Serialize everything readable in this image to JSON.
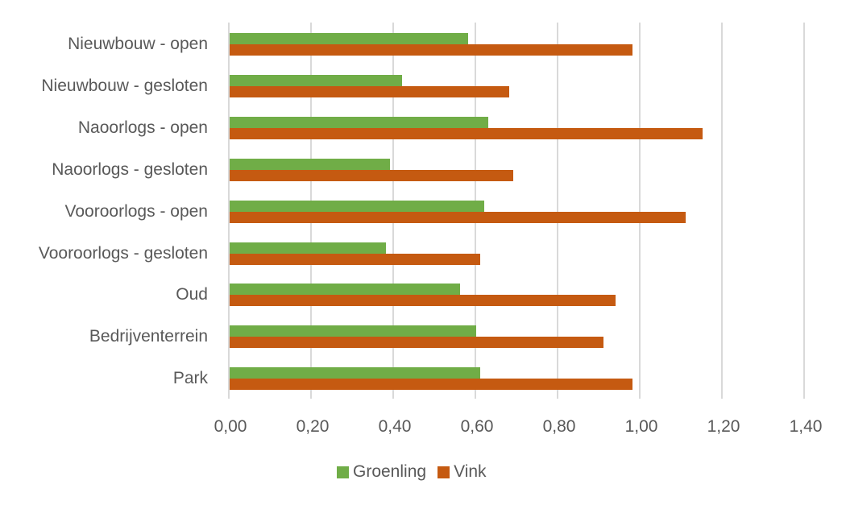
{
  "chart_data": {
    "type": "bar",
    "orientation": "horizontal",
    "title": "",
    "xlabel": "",
    "ylabel": "",
    "categories": [
      "Nieuwbouw - open",
      "Nieuwbouw - gesloten",
      "Naoorlogs - open",
      "Naoorlogs - gesloten",
      "Vooroorlogs - open",
      "Vooroorlogs - gesloten",
      "Oud",
      "Bedrijventerrein",
      "Park"
    ],
    "series": [
      {
        "name": "Groenling",
        "color": "#70ad47",
        "values": [
          0.58,
          0.42,
          0.63,
          0.39,
          0.62,
          0.38,
          0.56,
          0.6,
          0.61
        ]
      },
      {
        "name": "Vink",
        "color": "#c55a11",
        "values": [
          0.98,
          0.68,
          1.15,
          0.69,
          1.11,
          0.61,
          0.94,
          0.91,
          0.98
        ]
      }
    ],
    "xlim": [
      0,
      1.4
    ],
    "x_ticks": [
      "0,00",
      "0,20",
      "0,40",
      "0,60",
      "0,80",
      "1,00",
      "1,20",
      "1,40"
    ],
    "grid": true,
    "legend_position": "bottom"
  },
  "legend": {
    "items": [
      {
        "label": "Groenling",
        "color": "#70ad47"
      },
      {
        "label": "Vink",
        "color": "#c55a11"
      }
    ]
  }
}
